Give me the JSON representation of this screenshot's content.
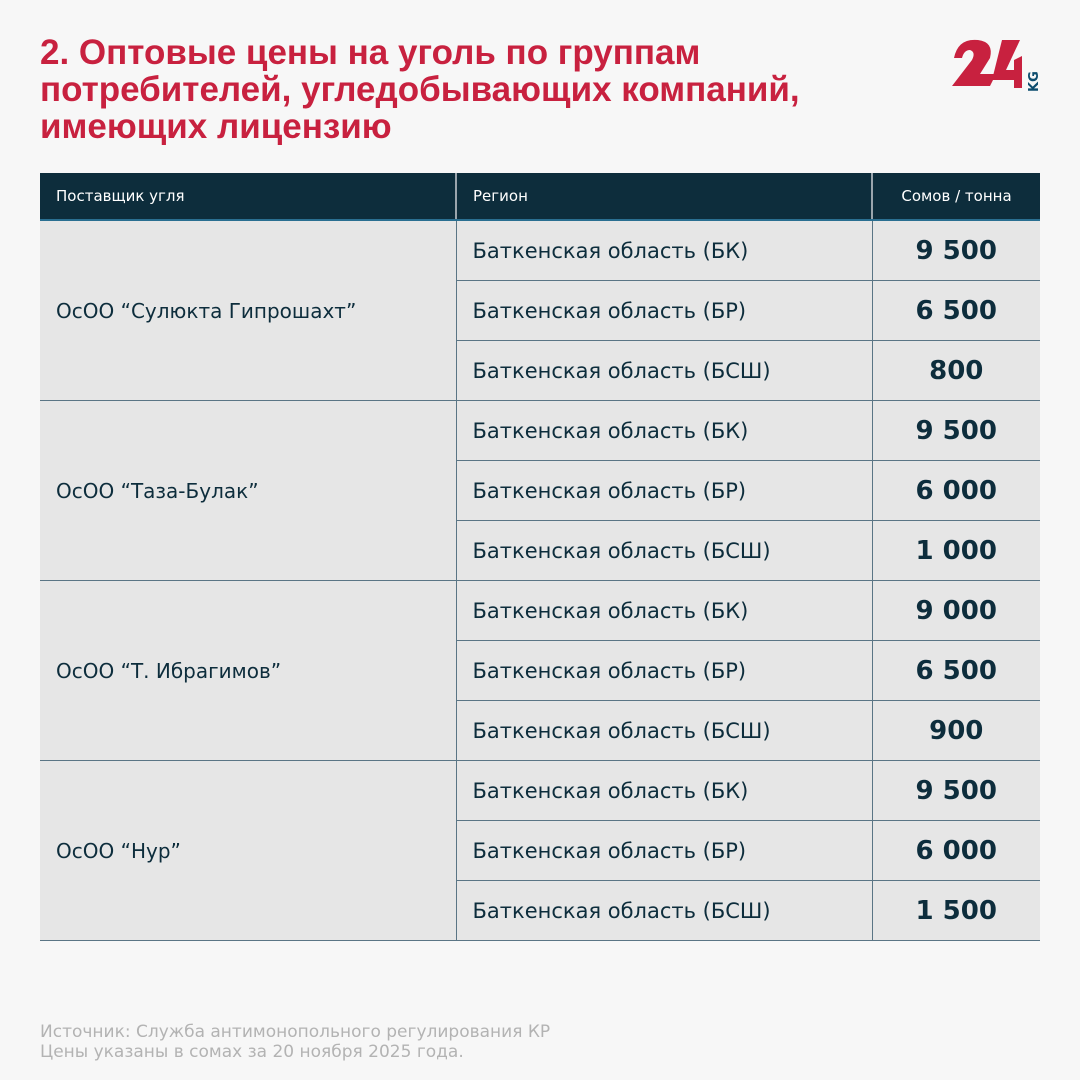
{
  "title": "2. Оптовые цены на уголь по группам потребителей, угледобывающих компаний, имеющих лицензию",
  "logo": {
    "text": "24 KG",
    "colors": {
      "red": "#c8213f",
      "blue": "#0d4d6e"
    }
  },
  "colors": {
    "title": "#c8213f",
    "header_bg": "#0d2d3c",
    "row_bg": "#e6e6e6",
    "page_bg": "#f7f7f7"
  },
  "chart_data": {
    "type": "table",
    "columns": [
      "Поставщик угля",
      "Регион",
      "Сомов / тонна"
    ],
    "groups": [
      {
        "supplier": "ОсОО “Сулюкта Гипрошахт”",
        "rows": [
          {
            "region": "Баткенская область (БК)",
            "price": "9 500"
          },
          {
            "region": "Баткенская область (БР)",
            "price": "6 500"
          },
          {
            "region": "Баткенская область (БСШ)",
            "price": "800"
          }
        ]
      },
      {
        "supplier": "ОсОО “Таза-Булак”",
        "rows": [
          {
            "region": "Баткенская область (БК)",
            "price": "9 500"
          },
          {
            "region": "Баткенская область (БР)",
            "price": "6 000"
          },
          {
            "region": "Баткенская область (БСШ)",
            "price": "1 000"
          }
        ]
      },
      {
        "supplier": "ОсОО “Т. Ибрагимов”",
        "rows": [
          {
            "region": "Баткенская область (БК)",
            "price": "9 000"
          },
          {
            "region": "Баткенская область (БР)",
            "price": "6 500"
          },
          {
            "region": "Баткенская область (БСШ)",
            "price": "900"
          }
        ]
      },
      {
        "supplier": "ОсОО “Нур”",
        "rows": [
          {
            "region": "Баткенская область (БК)",
            "price": "9 500"
          },
          {
            "region": "Баткенская область (БР)",
            "price": "6 000"
          },
          {
            "region": "Баткенская область (БСШ)",
            "price": "1 500"
          }
        ]
      }
    ]
  },
  "footer": {
    "source": "Источник: Служба антимонопольного регулирования КР",
    "note": "Цены указаны в сомах за 20 ноября 2025 года."
  }
}
